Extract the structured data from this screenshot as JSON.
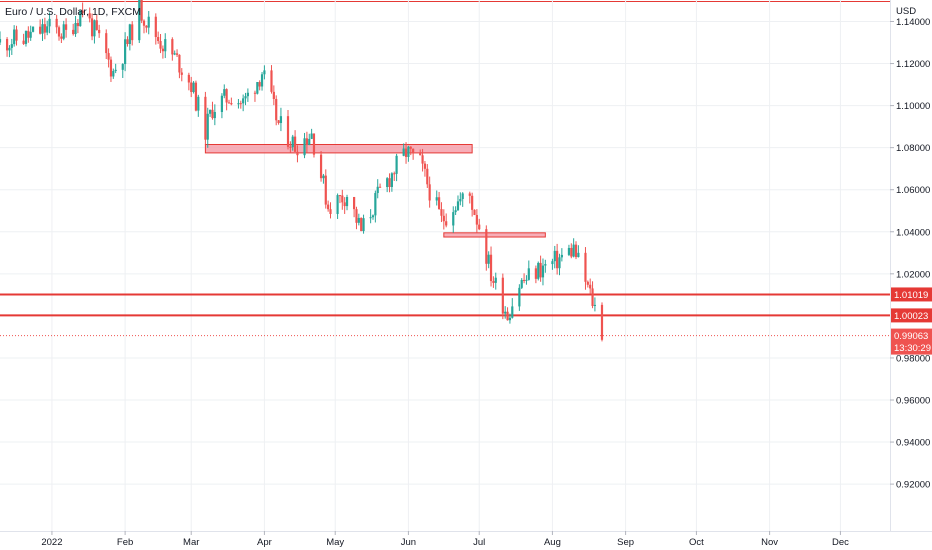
{
  "chart_data": {
    "type": "candlestick",
    "title": "Euro / U.S. Dollar, 1D, FXCM",
    "currency": "USD",
    "ylim": [
      0.9065,
      1.1495
    ],
    "y_ticks": [
      {
        "value": 1.14,
        "label": "1.14000"
      },
      {
        "value": 1.12,
        "label": "1.12000"
      },
      {
        "value": 1.1,
        "label": "1.10000"
      },
      {
        "value": 1.08,
        "label": "1.08000"
      },
      {
        "value": 1.06,
        "label": "1.06000"
      },
      {
        "value": 1.04,
        "label": "1.04000"
      },
      {
        "value": 1.02,
        "label": "1.02000"
      },
      {
        "value": 0.98,
        "label": "0.98000"
      },
      {
        "value": 0.96,
        "label": "0.96000"
      },
      {
        "value": 0.94,
        "label": "0.94000"
      },
      {
        "value": 0.92,
        "label": "0.92000"
      }
    ],
    "x_ticks": [
      {
        "date": "2022-01-01",
        "label": "2022"
      },
      {
        "date": "2022-02-01",
        "label": "Feb"
      },
      {
        "date": "2022-03-01",
        "label": "Mar"
      },
      {
        "date": "2022-04-01",
        "label": "Apr"
      },
      {
        "date": "2022-05-01",
        "label": "May"
      },
      {
        "date": "2022-06-01",
        "label": "Jun"
      },
      {
        "date": "2022-07-01",
        "label": "Jul"
      },
      {
        "date": "2022-08-01",
        "label": "Aug"
      },
      {
        "date": "2022-09-01",
        "label": "Sep"
      },
      {
        "date": "2022-10-01",
        "label": "Oct"
      },
      {
        "date": "2022-11-01",
        "label": "Nov"
      },
      {
        "date": "2022-12-01",
        "label": "Dec"
      }
    ],
    "x_range": [
      "2021-12-10",
      "2022-12-22"
    ],
    "price_path": [
      [
        "2021-12-10",
        1.13
      ],
      [
        "2021-12-20",
        1.132
      ],
      [
        "2021-12-31",
        1.137
      ],
      [
        "2022-01-07",
        1.134
      ],
      [
        "2022-01-14",
        1.146
      ],
      [
        "2022-01-20",
        1.133
      ],
      [
        "2022-01-27",
        1.116
      ],
      [
        "2022-02-01",
        1.127
      ],
      [
        "2022-02-07",
        1.146
      ],
      [
        "2022-02-15",
        1.132
      ],
      [
        "2022-02-24",
        1.12
      ],
      [
        "2022-03-01",
        1.11
      ],
      [
        "2022-03-07",
        1.088
      ],
      [
        "2022-03-10",
        1.099
      ],
      [
        "2022-03-18",
        1.105
      ],
      [
        "2022-03-23",
        1.101
      ],
      [
        "2022-03-31",
        1.116
      ],
      [
        "2022-04-07",
        1.091
      ],
      [
        "2022-04-14",
        1.081
      ],
      [
        "2022-04-21",
        1.087
      ],
      [
        "2022-04-28",
        1.052
      ],
      [
        "2022-05-06",
        1.058
      ],
      [
        "2022-05-12",
        1.04
      ],
      [
        "2022-05-20",
        1.059
      ],
      [
        "2022-05-31",
        1.078
      ],
      [
        "2022-06-06",
        1.072
      ],
      [
        "2022-06-15",
        1.045
      ],
      [
        "2022-06-20",
        1.053
      ],
      [
        "2022-06-27",
        1.057
      ],
      [
        "2022-07-01",
        1.043
      ],
      [
        "2022-07-06",
        1.02
      ],
      [
        "2022-07-13",
        1.001
      ],
      [
        "2022-07-18",
        1.015
      ],
      [
        "2022-07-26",
        1.022
      ],
      [
        "2022-08-01",
        1.025
      ],
      [
        "2022-08-10",
        1.032
      ],
      [
        "2022-08-17",
        1.01
      ],
      [
        "2022-08-19",
        1.004
      ],
      [
        "2022-08-22",
        0.9925
      ]
    ],
    "zones": [
      {
        "from": "2022-03-07",
        "to": "2022-06-28",
        "high": 1.0815,
        "low": 1.0775
      },
      {
        "from": "2022-06-16",
        "to": "2022-07-29",
        "high": 1.0395,
        "low": 1.0375
      }
    ],
    "levels": [
      {
        "value": 1.01019,
        "label": "1.01019"
      },
      {
        "value": 1.00023,
        "label": "1.00023"
      }
    ],
    "last_price": {
      "value": 0.99063,
      "label": "0.99063",
      "countdown": "13:30:29"
    },
    "top_line": {
      "value": 1.1495
    },
    "colors": {
      "up": "#26a69a",
      "down": "#ef5350",
      "level": "#e53935",
      "zone_fill": "#f59aa6",
      "zone_stroke": "#e53935",
      "grid": "#eef0f3",
      "axis_text": "#131722"
    }
  }
}
